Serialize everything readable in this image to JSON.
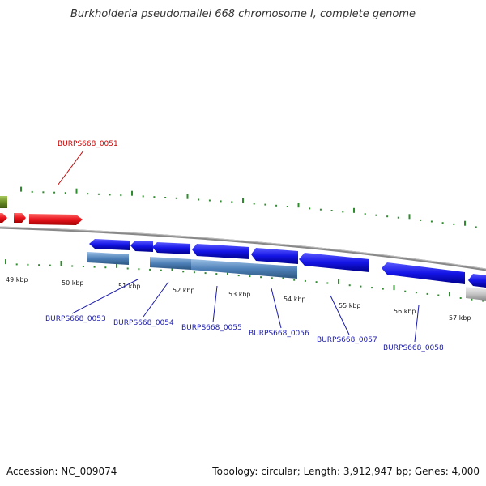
{
  "title": "Burkholderia pseudomallei 668 chromosome I, complete genome",
  "footer": {
    "accession_label": "Accession:",
    "accession": "NC_009074",
    "topology_label": "Topology:",
    "topology": "circular",
    "length_label": "Length:",
    "length": "3,912,947 bp",
    "genes_label": "Genes:",
    "genes": "4,000"
  },
  "colors": {
    "tick": "#2e8b2e",
    "backbone": "#888888",
    "gene_forward": "#e8141c",
    "gene_reverse": "#1414e6",
    "gene_other": "#6b8e23",
    "cds_block": "#4f81b8",
    "gray_gene": "#c0c0c0",
    "label_red": "#cc0000",
    "label_blue": "#1a1aaa"
  },
  "tick_labels": [
    "49 kbp",
    "50 kbp",
    "51 kbp",
    "52 kbp",
    "53 kbp",
    "54 kbp",
    "55 kbp",
    "56 kbp",
    "57 kbp"
  ],
  "gene_labels": [
    {
      "name": "BURPS668_0051",
      "strand": "forward"
    },
    {
      "name": "BURPS668_0053",
      "strand": "reverse"
    },
    {
      "name": "BURPS668_0054",
      "strand": "reverse"
    },
    {
      "name": "BURPS668_0055",
      "strand": "reverse"
    },
    {
      "name": "BURPS668_0056",
      "strand": "reverse"
    },
    {
      "name": "BURPS668_0057",
      "strand": "reverse"
    },
    {
      "name": "BURPS668_0058",
      "strand": "reverse"
    }
  ]
}
